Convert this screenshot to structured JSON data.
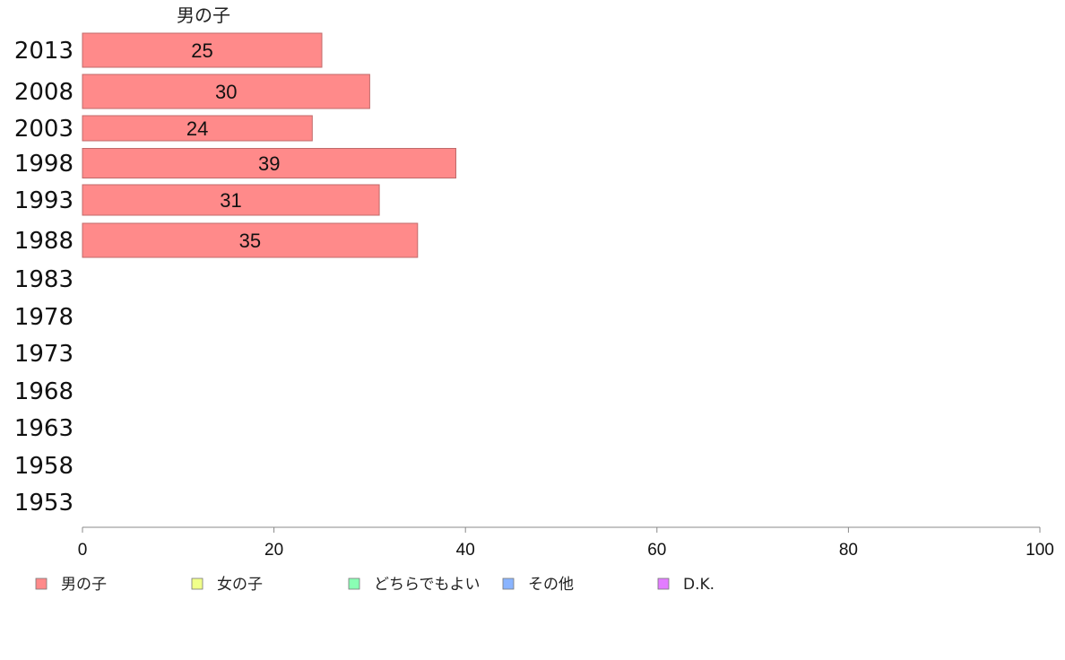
{
  "chart_data": {
    "type": "bar",
    "orientation": "horizontal",
    "series_title": "男の子",
    "categories": [
      "2013",
      "2008",
      "2003",
      "1998",
      "1993",
      "1988",
      "1983",
      "1978",
      "1973",
      "1968",
      "1963",
      "1958",
      "1953"
    ],
    "series": [
      {
        "name": "男の子",
        "color": "#ff8a8a",
        "values": [
          25,
          30,
          24,
          39,
          31,
          35,
          null,
          null,
          null,
          null,
          null,
          null,
          null
        ]
      }
    ],
    "xlim": [
      0,
      100
    ],
    "xticks": [
      "0",
      "20",
      "40",
      "60",
      "80",
      "100"
    ],
    "grid": false,
    "legend_position": "bottom",
    "legend": [
      {
        "label": "男の子",
        "color": "#ff8a8a"
      },
      {
        "label": "女の子",
        "color": "#f0ff8a"
      },
      {
        "label": "どちらでもよい",
        "color": "#8affb4"
      },
      {
        "label": "その他",
        "color": "#8ab4ff"
      },
      {
        "label": "D.K.",
        "color": "#e27cff"
      }
    ]
  }
}
